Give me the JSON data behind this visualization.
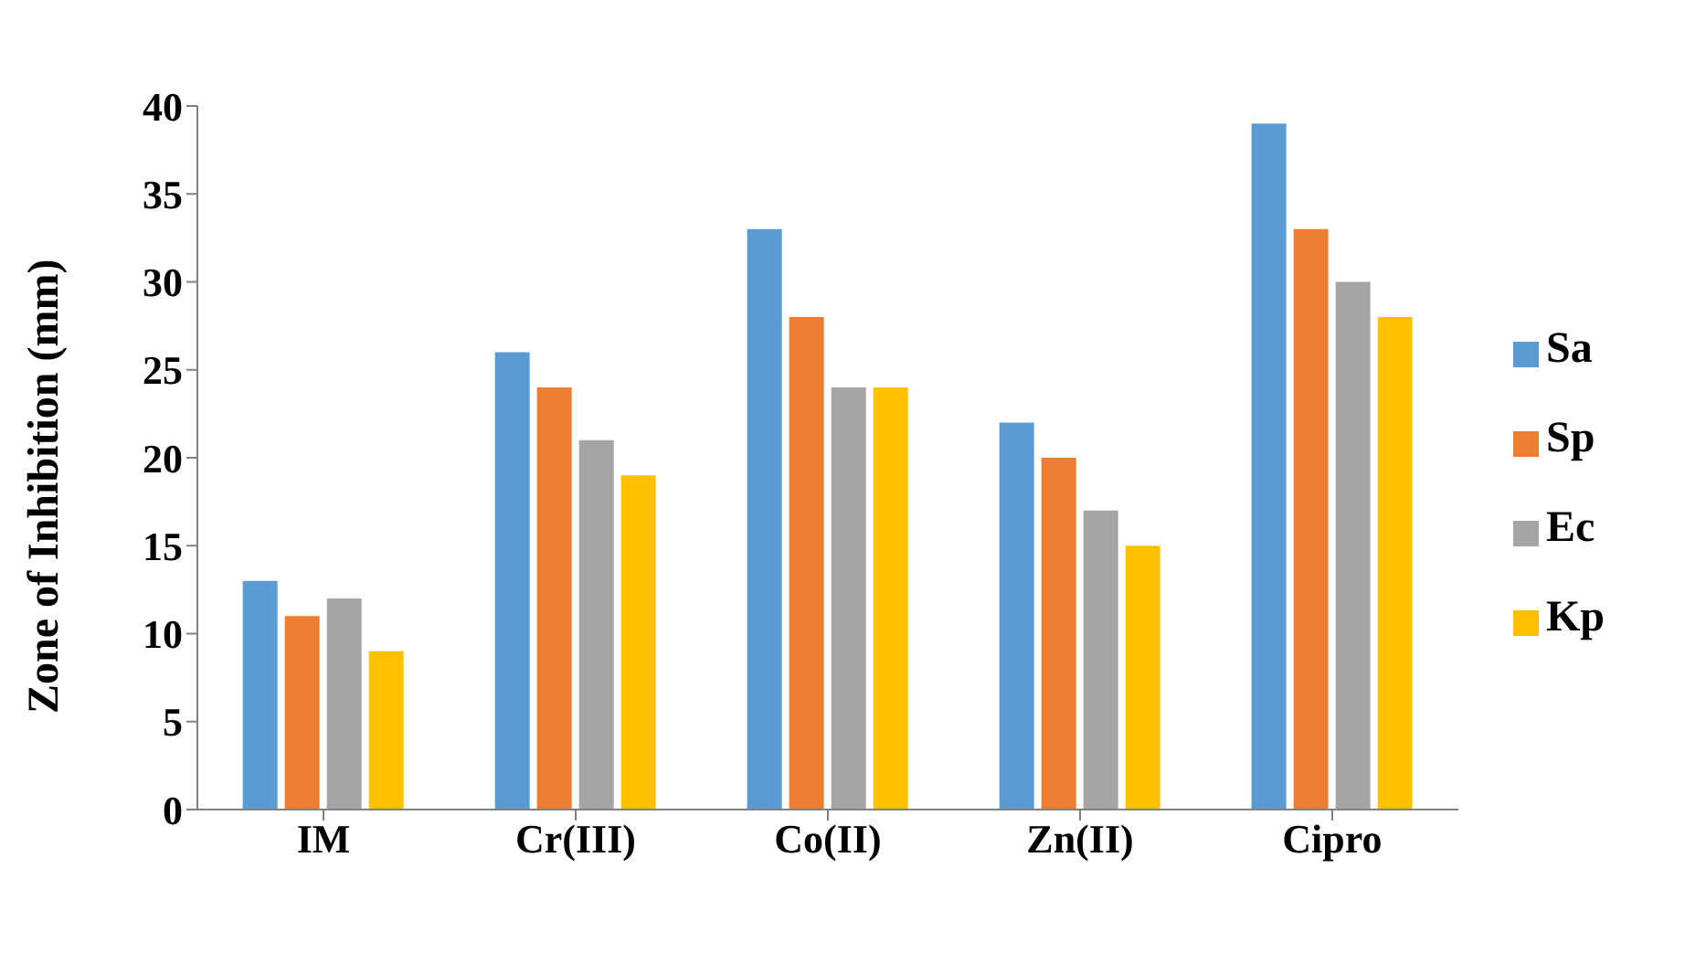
{
  "chart_data": {
    "type": "bar",
    "ylabel": "Zone of Inhibition (mm)",
    "categories": [
      "IM",
      "Cr(III)",
      "Co(II)",
      "Zn(II)",
      "Cipro"
    ],
    "series": [
      {
        "name": "Sa",
        "color": "#5b9bd5",
        "values": [
          13,
          26,
          33,
          22,
          39
        ]
      },
      {
        "name": "Sp",
        "color": "#ed7d31",
        "values": [
          11,
          24,
          28,
          20,
          33
        ]
      },
      {
        "name": "Ec",
        "color": "#a5a5a5",
        "values": [
          12,
          21,
          24,
          17,
          30
        ]
      },
      {
        "name": "Kp",
        "color": "#ffc000",
        "values": [
          9,
          19,
          24,
          15,
          28
        ]
      }
    ],
    "ylim": [
      0,
      40
    ],
    "yticks": [
      0,
      5,
      10,
      15,
      20,
      25,
      30,
      35,
      40
    ],
    "grid": false,
    "legend": "right"
  }
}
